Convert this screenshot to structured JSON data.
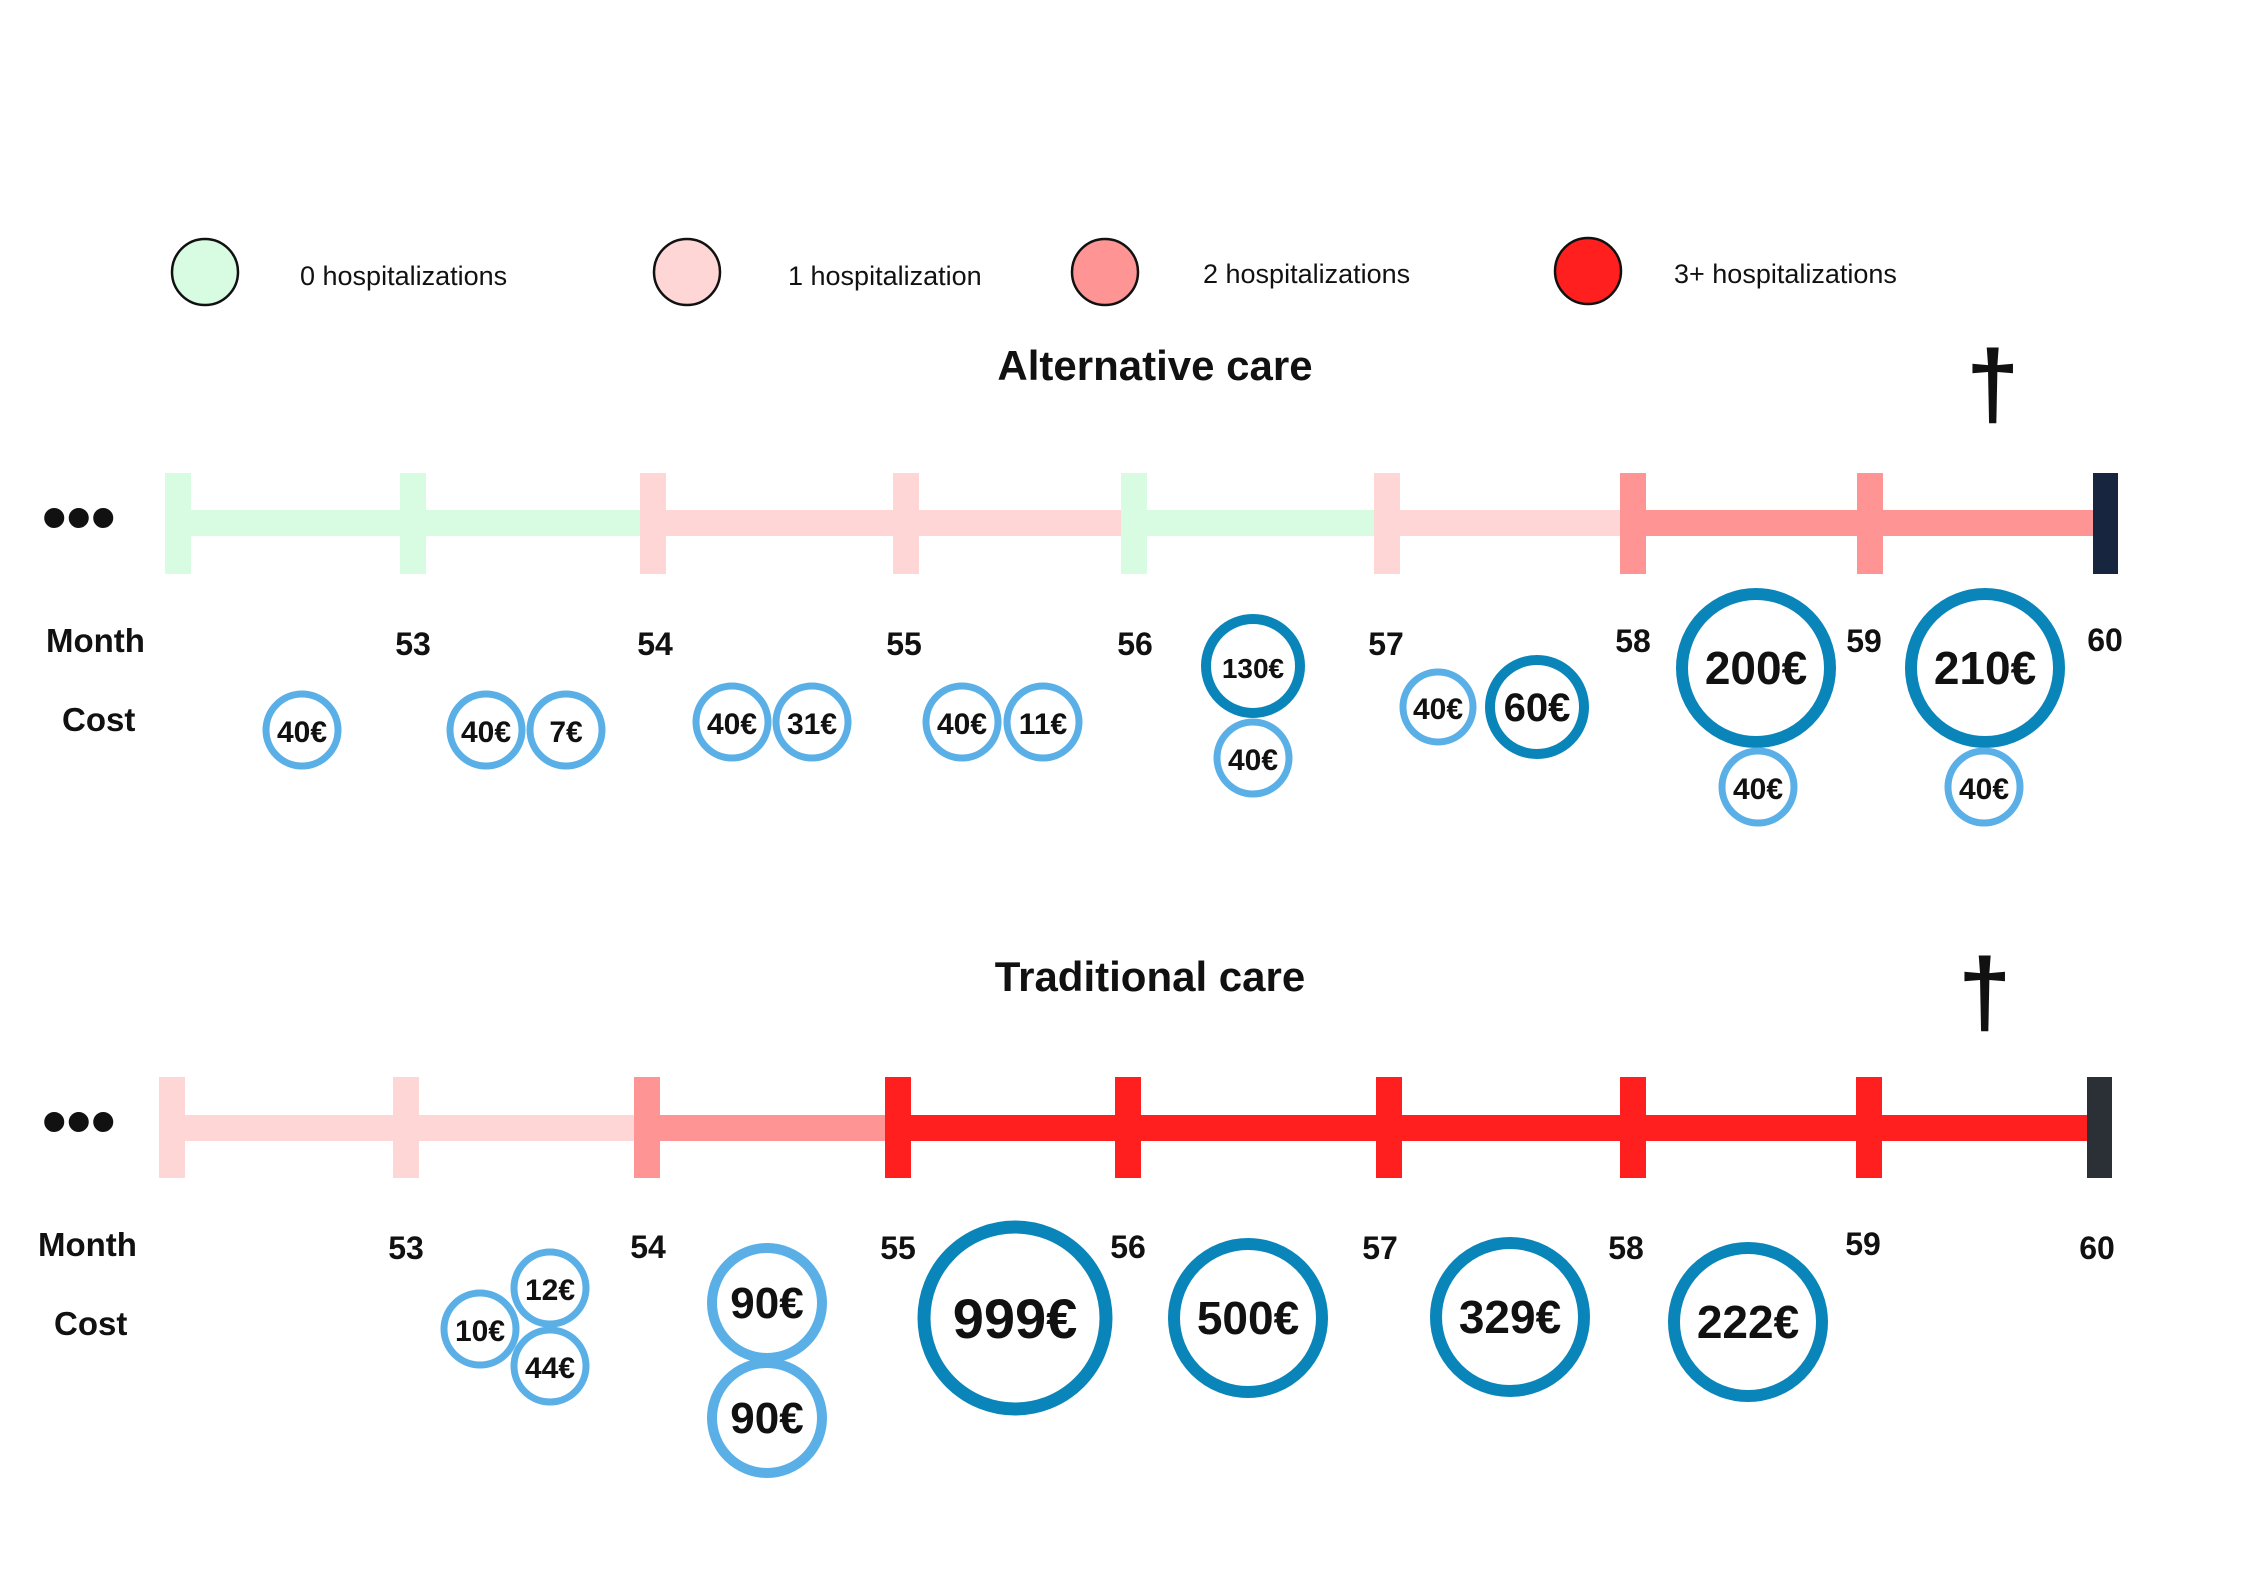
{
  "colors": {
    "hosp0": "#d8fce2",
    "hosp1": "#ffd6d6",
    "hosp2": "#ff9494",
    "hosp3": "#ff1f1f",
    "end_bar_alt": "#17253f",
    "end_bar_trad": "#2a3035",
    "cost_light": "#5ab0e6",
    "cost_dark": "#0a85b9"
  },
  "legend": [
    {
      "label": "0 hospitalizations",
      "color_key": "hosp0"
    },
    {
      "label": "1 hospitalization",
      "color_key": "hosp1"
    },
    {
      "label": "2 hospitalizations",
      "color_key": "hosp2"
    },
    {
      "label": "3+ hospitalizations",
      "color_key": "hosp3"
    }
  ],
  "common": {
    "ellipsis": "•••",
    "month_label": "Month",
    "cost_label": "Cost",
    "death_symbol": "†"
  },
  "alternative": {
    "title": "Alternative care",
    "months": [
      "53",
      "54",
      "55",
      "56",
      "57",
      "58",
      "59",
      "60"
    ],
    "segments": [
      "hosp0",
      "hosp0",
      "hosp1",
      "hosp1",
      "hosp0",
      "hosp1",
      "hosp2",
      "hosp2"
    ],
    "costs": [
      {
        "label": "40€",
        "style": "light",
        "amount": 40
      },
      {
        "label": "40€",
        "style": "light",
        "amount": 40
      },
      {
        "label": "7€",
        "style": "light",
        "amount": 7
      },
      {
        "label": "40€",
        "style": "light",
        "amount": 40
      },
      {
        "label": "31€",
        "style": "light",
        "amount": 31
      },
      {
        "label": "40€",
        "style": "light",
        "amount": 40
      },
      {
        "label": "11€",
        "style": "light",
        "amount": 11
      },
      {
        "label": "130€",
        "style": "dark",
        "amount": 130
      },
      {
        "label": "40€",
        "style": "light",
        "amount": 40
      },
      {
        "label": "40€",
        "style": "light",
        "amount": 40
      },
      {
        "label": "60€",
        "style": "dark",
        "amount": 60
      },
      {
        "label": "200€",
        "style": "dark",
        "amount": 200
      },
      {
        "label": "40€",
        "style": "light",
        "amount": 40
      },
      {
        "label": "210€",
        "style": "dark",
        "amount": 210
      },
      {
        "label": "40€",
        "style": "light",
        "amount": 40
      }
    ]
  },
  "traditional": {
    "title": "Traditional care",
    "months": [
      "53",
      "54",
      "55",
      "56",
      "57",
      "58",
      "59",
      "60"
    ],
    "segments": [
      "hosp1",
      "hosp1",
      "hosp2",
      "hosp3",
      "hosp3",
      "hosp3",
      "hosp3",
      "hosp3"
    ],
    "costs": [
      {
        "label": "12€",
        "style": "light",
        "amount": 12
      },
      {
        "label": "10€",
        "style": "light",
        "amount": 10
      },
      {
        "label": "44€",
        "style": "light",
        "amount": 44
      },
      {
        "label": "90€",
        "style": "light",
        "amount": 90
      },
      {
        "label": "90€",
        "style": "light",
        "amount": 90
      },
      {
        "label": "999€",
        "style": "dark",
        "amount": 999
      },
      {
        "label": "500€",
        "style": "dark",
        "amount": 500
      },
      {
        "label": "329€",
        "style": "dark",
        "amount": 329
      },
      {
        "label": "222€",
        "style": "dark",
        "amount": 222
      }
    ]
  }
}
